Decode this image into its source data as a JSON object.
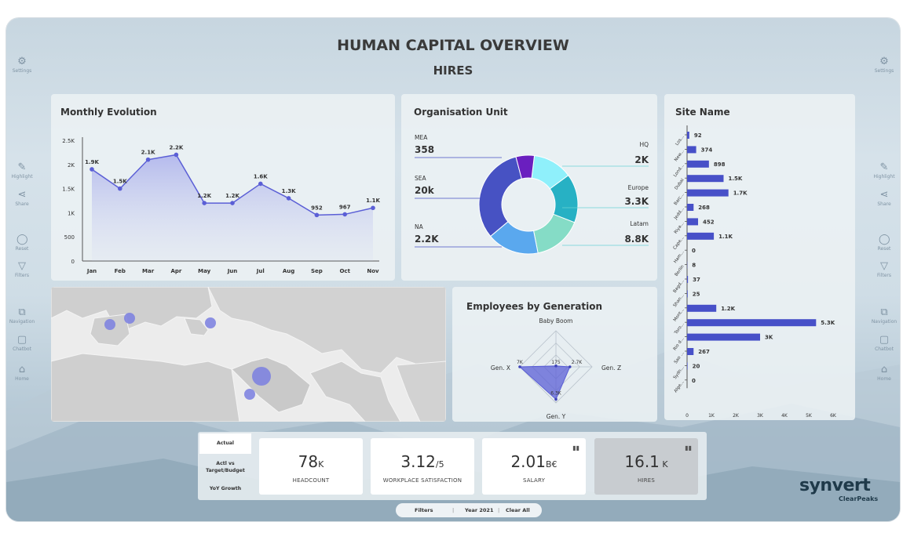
{
  "header": {
    "title": "HUMAN CAPITAL OVERVIEW",
    "subtitle": "HIRES"
  },
  "side_left": [
    {
      "label": "Settings",
      "icon": "gear-icon"
    },
    {
      "label": "Highlight",
      "icon": "highlighter-icon"
    },
    {
      "label": "Share",
      "icon": "share-icon"
    },
    {
      "label": "Reset",
      "icon": "reset-icon"
    },
    {
      "label": "Filters",
      "icon": "filter-icon"
    },
    {
      "label": "Navigation",
      "icon": "navigation-icon"
    },
    {
      "label": "Chatbot",
      "icon": "chat-icon"
    },
    {
      "label": "Home",
      "icon": "home-icon"
    }
  ],
  "side_right": [
    {
      "label": "Settings",
      "icon": "gear-icon"
    },
    {
      "label": "Highlight",
      "icon": "highlighter-icon"
    },
    {
      "label": "Share",
      "icon": "share-icon"
    },
    {
      "label": "Reset",
      "icon": "reset-icon"
    },
    {
      "label": "Filters",
      "icon": "filter-icon"
    },
    {
      "label": "Navigation",
      "icon": "navigation-icon"
    },
    {
      "label": "Chatbot",
      "icon": "chat-icon"
    },
    {
      "label": "Home",
      "icon": "home-icon"
    }
  ],
  "panels": {
    "monthly": "Monthly Evolution",
    "org": "Organisation Unit",
    "site": "Site Name",
    "generation": "Employees by Generation"
  },
  "chart_data": [
    {
      "type": "area",
      "title": "Monthly Evolution",
      "categories": [
        "Jan",
        "Feb",
        "Mar",
        "Apr",
        "May",
        "Jun",
        "Jul",
        "Aug",
        "Sep",
        "Oct",
        "Nov"
      ],
      "values": [
        1900,
        1500,
        2100,
        2200,
        1200,
        1200,
        1600,
        1300,
        952,
        967,
        1100
      ],
      "data_labels": [
        "1.9K",
        "1.5K",
        "2.1K",
        "2.2K",
        "1.2K",
        "1.2K",
        "1.6K",
        "1.3K",
        "952",
        "967",
        "1.1K"
      ],
      "yticks": [
        "0",
        "500",
        "1K",
        "1.5K",
        "2K",
        "2.5K"
      ],
      "ylim": [
        0,
        2500
      ],
      "color": "#5b5fd6"
    },
    {
      "type": "pie",
      "title": "Organisation Unit",
      "slices": [
        {
          "name": "HQ",
          "label": "2K",
          "value": 2000,
          "color": "#8ff0fb"
        },
        {
          "name": "Europe",
          "label": "3.3K",
          "value": 3300,
          "color": "#27b1c4"
        },
        {
          "name": "Latam",
          "label": "8.8K",
          "value": 8800,
          "color": "#85dcc6"
        },
        {
          "name": "NA",
          "label": "2.2K",
          "value": 2200,
          "color": "#5aa8ee"
        },
        {
          "name": "SEA",
          "label": "20k",
          "value": 20000,
          "color": "#4752c3"
        },
        {
          "name": "MEA",
          "label": "358",
          "value": 358,
          "color": "#6a1fbf"
        }
      ]
    },
    {
      "type": "bar",
      "title": "Site Name",
      "categories": [
        "Los...",
        "New...",
        "Lond...",
        "Dubai",
        "Barc...",
        "Jedd...",
        "Riya...",
        "Cape...",
        "Ham...",
        "Berlin",
        "Bagd...",
        "Shan...",
        "Mont...",
        "Toro...",
        "Rio d...",
        "Sao ...",
        "Sydn...",
        "Alge..."
      ],
      "values": [
        92,
        374,
        898,
        1500,
        1700,
        268,
        452,
        1100,
        0,
        8,
        37,
        25,
        1200,
        5300,
        3000,
        267,
        20,
        0
      ],
      "data_labels": [
        "92",
        "374",
        "898",
        "1.5K",
        "1.7K",
        "268",
        "452",
        "1.1K",
        "0",
        "8",
        "37",
        "25",
        "1.2K",
        "5.3K",
        "3K",
        "267",
        "20",
        "0"
      ],
      "xticks": [
        "0",
        "1K",
        "2K",
        "3K",
        "4K",
        "5K",
        "6K"
      ],
      "xlim": [
        0,
        6000
      ],
      "color": "#4750c8"
    },
    {
      "type": "radar",
      "title": "Employees by Generation",
      "axes": [
        "Baby Boom",
        "Gen. Z",
        "Gen. Y",
        "Gen. X"
      ],
      "values": [
        175,
        2700,
        6300,
        7000
      ],
      "data_labels": [
        "175",
        "2.7K",
        "6.3K",
        "7K"
      ],
      "color": "#5b5fd6"
    }
  ],
  "map": {
    "bubbles": [
      {
        "name": "Portugal"
      },
      {
        "name": "Spain"
      },
      {
        "name": "Turkey"
      },
      {
        "name": "Saudi Arabia"
      },
      {
        "name": "Yemen"
      }
    ]
  },
  "tabs": [
    {
      "label": "Actual"
    },
    {
      "label": "Actl vs Target/Budget"
    },
    {
      "label": "YoY Growth"
    }
  ],
  "kpis": [
    {
      "value": "78",
      "unit": "K",
      "label": "HEADCOUNT"
    },
    {
      "value": "3.12",
      "unit": "/5",
      "label": "WORKPLACE SATISFACTION"
    },
    {
      "value": "2.01",
      "unit": "B€",
      "label": "SALARY"
    },
    {
      "value": "16.1",
      "unit": " K",
      "label": "HIRES"
    }
  ],
  "bottom_bar": {
    "filters": "Filters",
    "year": "Year 2021",
    "clear": "Clear All"
  },
  "brand": {
    "name": "synvert",
    "sub": "ClearPeaks"
  }
}
